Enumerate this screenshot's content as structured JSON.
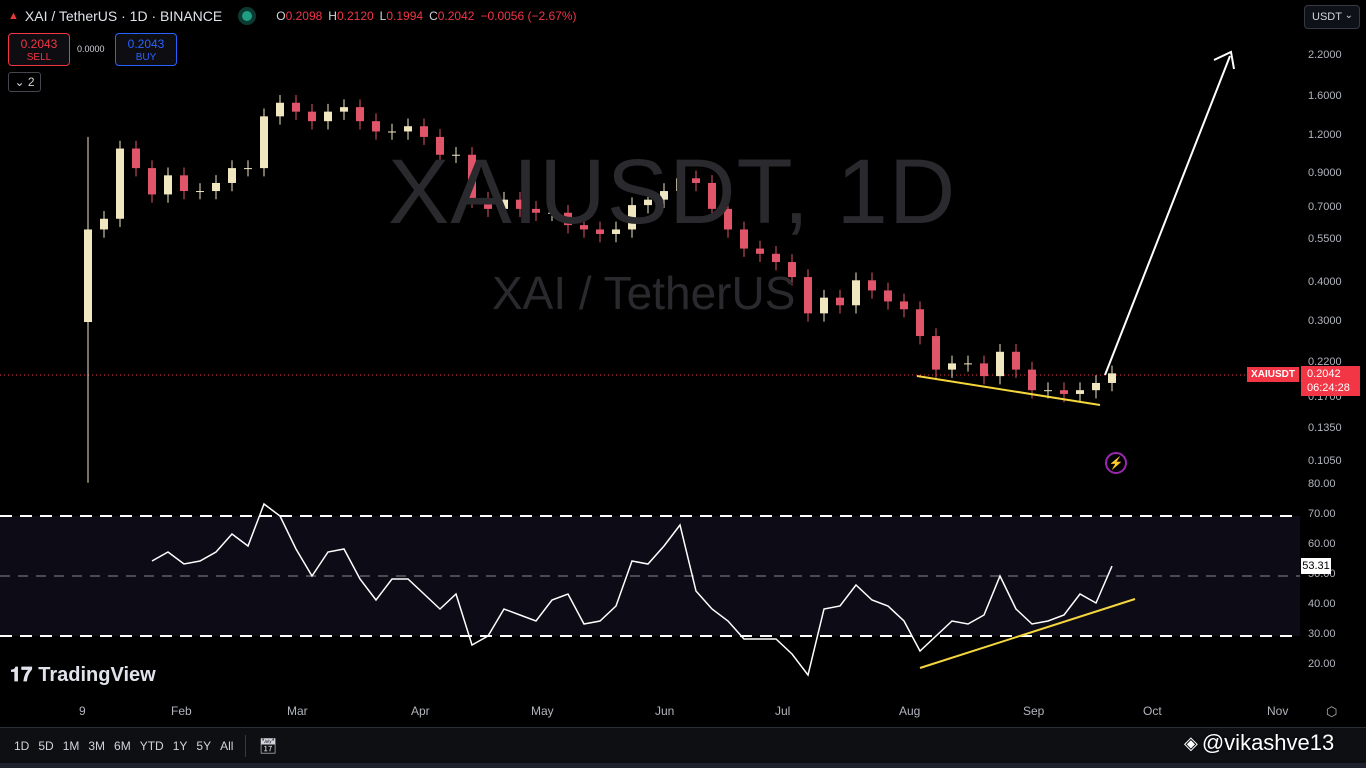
{
  "header": {
    "symbol_title": "XAI / TetherUS · 1D · BINANCE",
    "ohlc": {
      "o_label": "O",
      "o": "0.2098",
      "h_label": "H",
      "h": "0.2120",
      "l_label": "L",
      "l": "0.1994",
      "c_label": "C",
      "c": "0.2042",
      "change": "−0.0056 (−2.67%)"
    },
    "sell": {
      "price": "0.2043",
      "label": "SELL"
    },
    "spread": "0.0000",
    "buy": {
      "price": "0.2043",
      "label": "BUY"
    },
    "legend_toggle": "2",
    "currency": "USDT"
  },
  "watermark": {
    "line1": "XAIUSDT, 1D",
    "line2": "XAI / TetherUS"
  },
  "price_axis": [
    "2.2000",
    "1.6000",
    "1.2000",
    "0.9000",
    "0.7000",
    "0.5500",
    "0.4000",
    "0.3000",
    "0.2200",
    "0.1700",
    "0.1350",
    "0.1050"
  ],
  "price_label": {
    "symbol": "XAIUSDT",
    "price": "0.2042",
    "countdown": "06:24:28"
  },
  "rsi_axis": [
    "80.00",
    "70.00",
    "60.00",
    "50.00",
    "40.00",
    "30.00",
    "20.00"
  ],
  "rsi_label": "53.31",
  "time_axis": [
    "9",
    "Feb",
    "Mar",
    "Apr",
    "May",
    "Jun",
    "Jul",
    "Aug",
    "Sep",
    "Oct",
    "Nov"
  ],
  "toolbar": {
    "ranges": [
      "1D",
      "5D",
      "1M",
      "3M",
      "6M",
      "YTD",
      "1Y",
      "5Y",
      "All"
    ]
  },
  "branding": {
    "logo": "TradingView",
    "credit": "@vikashve13"
  },
  "colors": {
    "up": "#f0e6c0",
    "down": "#e0556a",
    "rsi": "#ffffff",
    "trendline": "#f5d63d",
    "arrow": "#ffffff",
    "price_line": "#f23645"
  },
  "chart_data": [
    {
      "type": "candlestick",
      "scale": "log",
      "ylim": [
        0.1,
        2.4
      ],
      "x": [
        "2024-01-09",
        "2024-01-13",
        "2024-01-17",
        "2024-01-21",
        "2024-01-25",
        "2024-01-29",
        "2024-02-02",
        "2024-02-06",
        "2024-02-10",
        "2024-02-14",
        "2024-02-18",
        "2024-02-22",
        "2024-02-26",
        "2024-03-01",
        "2024-03-05",
        "2024-03-09",
        "2024-03-13",
        "2024-03-17",
        "2024-03-21",
        "2024-03-25",
        "2024-03-29",
        "2024-04-02",
        "2024-04-06",
        "2024-04-10",
        "2024-04-14",
        "2024-04-18",
        "2024-04-22",
        "2024-04-26",
        "2024-04-30",
        "2024-05-04",
        "2024-05-08",
        "2024-05-12",
        "2024-05-16",
        "2024-05-20",
        "2024-05-24",
        "2024-05-28",
        "2024-06-01",
        "2024-06-05",
        "2024-06-09",
        "2024-06-13",
        "2024-06-17",
        "2024-06-21",
        "2024-06-25",
        "2024-06-29",
        "2024-07-03",
        "2024-07-07",
        "2024-07-11",
        "2024-07-15",
        "2024-07-19",
        "2024-07-23",
        "2024-07-27",
        "2024-07-31",
        "2024-08-04",
        "2024-08-08",
        "2024-08-12",
        "2024-08-16",
        "2024-08-20",
        "2024-08-24",
        "2024-08-28",
        "2024-09-01",
        "2024-09-05",
        "2024-09-09",
        "2024-09-13",
        "2024-09-17",
        "2024-09-21"
      ],
      "close": [
        0.6,
        0.65,
        1.1,
        0.95,
        0.78,
        0.9,
        0.8,
        0.8,
        0.85,
        0.95,
        0.95,
        1.4,
        1.55,
        1.45,
        1.35,
        1.45,
        1.5,
        1.35,
        1.25,
        1.25,
        1.3,
        1.2,
        1.05,
        1.05,
        0.75,
        0.7,
        0.75,
        0.7,
        0.68,
        0.68,
        0.62,
        0.6,
        0.58,
        0.6,
        0.72,
        0.75,
        0.8,
        0.88,
        0.85,
        0.7,
        0.6,
        0.52,
        0.5,
        0.47,
        0.42,
        0.32,
        0.36,
        0.34,
        0.41,
        0.38,
        0.35,
        0.33,
        0.27,
        0.21,
        0.22,
        0.22,
        0.2,
        0.24,
        0.21,
        0.18,
        0.18,
        0.175,
        0.18,
        0.19,
        0.2042
      ]
    },
    {
      "type": "line",
      "ylim": [
        15,
        82
      ],
      "bands": [
        30,
        50,
        70
      ],
      "values": [
        null,
        null,
        null,
        null,
        55,
        58,
        54,
        55,
        58,
        64,
        60,
        74,
        70,
        59,
        50,
        58,
        59,
        49,
        42,
        49,
        49,
        44,
        39,
        44,
        27,
        30,
        39,
        37,
        35,
        42,
        44,
        34,
        35,
        40,
        55,
        54,
        60,
        67,
        45,
        39,
        35,
        29,
        29,
        29,
        24,
        17,
        39,
        40,
        47,
        42,
        40,
        35,
        25,
        30,
        35,
        34,
        37,
        50,
        39,
        34,
        35,
        37,
        44,
        41,
        53.31
      ]
    }
  ]
}
